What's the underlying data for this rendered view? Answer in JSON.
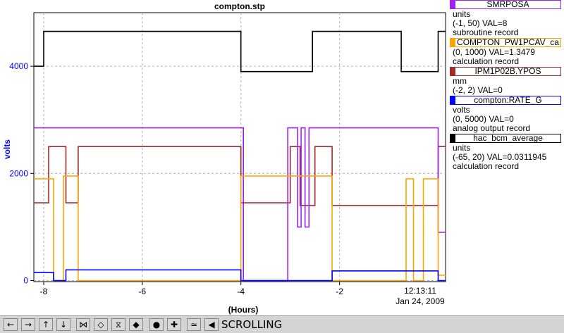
{
  "window": {
    "title": "compton.stp"
  },
  "chart_data": {
    "type": "line",
    "title": "compton.stp",
    "xlabel": "(Hours)",
    "ylabel": "volts",
    "xlim": [
      -8.2,
      0.15
    ],
    "ylim": [
      -20,
      5000
    ],
    "x_ticks": [
      -8,
      -6,
      -4,
      -2
    ],
    "y_ticks": [
      0,
      2000,
      4000
    ],
    "grid": true,
    "time_label": "12:13:11",
    "date_label": "Jan 24, 2009",
    "legend_position": "right",
    "series": [
      {
        "name": "SMRPOSA",
        "color": "#a020f0",
        "unit": "units",
        "range_text": "(-1, 50) VAL=8",
        "record_type": "subroutine record",
        "x": [
          -8.2,
          -3.95,
          -3.95,
          -3.05,
          -3.05,
          -2.85,
          -2.85,
          -2.78,
          -2.78,
          -2.7,
          -2.7,
          -2.62,
          -2.62,
          -2.55,
          -2.55,
          0.0,
          0.0,
          0.15
        ],
        "y": [
          2850,
          2850,
          0,
          0,
          2850,
          2850,
          1000,
          1000,
          2850,
          2850,
          1000,
          1000,
          2850,
          2850,
          2850,
          2850,
          900,
          900
        ]
      },
      {
        "name": "COMPTON_PW1PCAV_ca",
        "color": "#ffa500",
        "unit": "",
        "range_text": "(0, 1000) VAL=1.3479",
        "record_type": "calculation record",
        "x": [
          -8.2,
          -7.8,
          -7.8,
          -7.6,
          -7.6,
          -7.3,
          -7.3,
          -4.0,
          -4.0,
          -2.15,
          -2.15,
          -0.65,
          -0.65,
          -0.5,
          -0.5,
          -0.3,
          -0.3,
          0.0,
          0.0,
          0.15
        ],
        "y": [
          1900,
          1900,
          0,
          0,
          1950,
          1950,
          0,
          0,
          1950,
          1950,
          0,
          0,
          1900,
          1900,
          0,
          0,
          1900,
          1900,
          100,
          100
        ]
      },
      {
        "name": "IPM1P02B.YPOS",
        "color": "#a52a2a",
        "unit": "mm",
        "range_text": "(-2, 2) VAL=0",
        "record_type": "",
        "x": [
          -8.2,
          -7.9,
          -7.9,
          -7.55,
          -7.55,
          -7.3,
          -7.3,
          -4.0,
          -4.0,
          -3.0,
          -3.0,
          -2.8,
          -2.8,
          -2.5,
          -2.5,
          -2.15,
          -2.15,
          0.0,
          0.0,
          0.15
        ],
        "y": [
          1450,
          1450,
          2500,
          2500,
          1450,
          1450,
          2500,
          2500,
          1450,
          1450,
          2500,
          2500,
          1400,
          1400,
          2500,
          2500,
          1400,
          1400,
          2500,
          2500
        ]
      },
      {
        "name": "compton:RATE_G",
        "color": "#0000ff",
        "unit": "volts",
        "range_text": "(0, 5000) VAL=0",
        "record_type": "analog output record",
        "x": [
          -8.2,
          -7.8,
          -7.8,
          -7.55,
          -7.55,
          -7.3,
          -7.3,
          -4.0,
          -4.0,
          -2.15,
          -2.15,
          0.0,
          0.0,
          0.15
        ],
        "y": [
          150,
          150,
          0,
          0,
          200,
          200,
          200,
          200,
          0,
          0,
          180,
          180,
          0,
          0
        ]
      },
      {
        "name": "hac_bcm_average",
        "color": "#000000",
        "unit": "units",
        "range_text": "(-65, 20) VAL=0.0311945",
        "record_type": "calculation record",
        "x": [
          -8.2,
          -8.0,
          -8.0,
          -4.0,
          -4.0,
          -2.55,
          -2.55,
          -2.15,
          -2.15,
          -0.75,
          -0.75,
          0.0,
          0.0,
          0.15
        ],
        "y": [
          4000,
          4000,
          4650,
          4650,
          3900,
          3900,
          4650,
          4650,
          4650,
          4650,
          3900,
          3900,
          4650,
          4650
        ]
      }
    ]
  },
  "toolbar": {
    "buttons": [
      {
        "name": "pan-left-button",
        "glyph": "←"
      },
      {
        "name": "pan-right-button",
        "glyph": "→"
      },
      {
        "name": "pan-up-button",
        "glyph": "↑"
      },
      {
        "name": "pan-down-button",
        "glyph": "↓"
      },
      {
        "name": "zoom-in-horizontal-button",
        "glyph": "⋈"
      },
      {
        "name": "zoom-out-horizontal-button",
        "glyph": "◇"
      },
      {
        "name": "zoom-in-vertical-button",
        "glyph": "⧖"
      },
      {
        "name": "zoom-out-vertical-button",
        "glyph": "◆"
      },
      {
        "name": "record-button",
        "glyph": "●"
      },
      {
        "name": "add-button",
        "glyph": "✚"
      },
      {
        "name": "autoscale-button",
        "glyph": "≃"
      },
      {
        "name": "scroll-mode-button",
        "glyph": "◀"
      }
    ],
    "mode_label": "SCROLLING"
  }
}
